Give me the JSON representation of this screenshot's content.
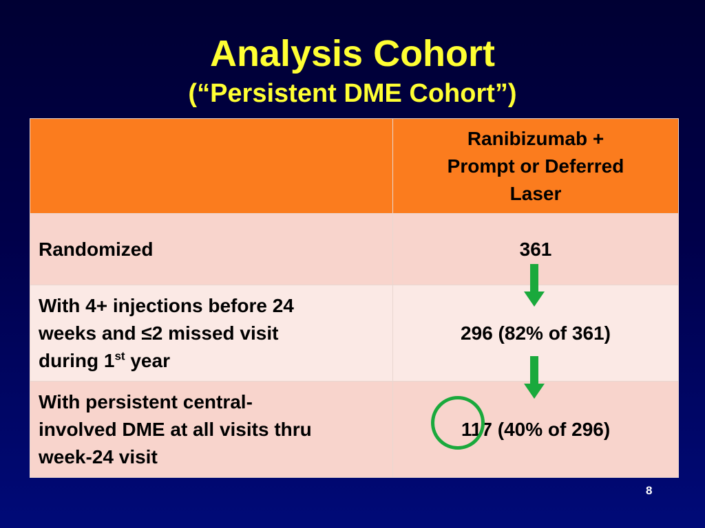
{
  "slide": {
    "title": "Analysis Cohort",
    "subtitle": "(“Persistent DME Cohort”)",
    "page_number": "8"
  },
  "table": {
    "header": {
      "label": "",
      "value_line1": "Ranibizumab +",
      "value_line2": "Prompt or Deferred",
      "value_line3": "Laser"
    },
    "rows": [
      {
        "label_line1": "Randomized",
        "value": "361"
      },
      {
        "label_line1": "With 4+ injections before 24",
        "label_line2": "weeks and ≤2 missed visit",
        "label_line3_pre": "during 1",
        "label_line3_sup": "st",
        "label_line3_post": " year",
        "value": "296 (82% of 361)"
      },
      {
        "label_line1": "With persistent central-",
        "label_line2": "involved DME at all visits thru",
        "label_line3": "week-24 visit",
        "value": "117 (40% of 296)"
      }
    ]
  },
  "colors": {
    "title": "#ffff33",
    "header_fill": "#fb7c1e",
    "row_fill_dark": "#f8d4cc",
    "row_fill_light": "#fbe9e5",
    "arrow": "#1aa93c",
    "highlight_circle": "#1aa93c"
  },
  "icons": [
    "down-arrow-icon",
    "down-arrow-icon",
    "highlight-circle"
  ]
}
